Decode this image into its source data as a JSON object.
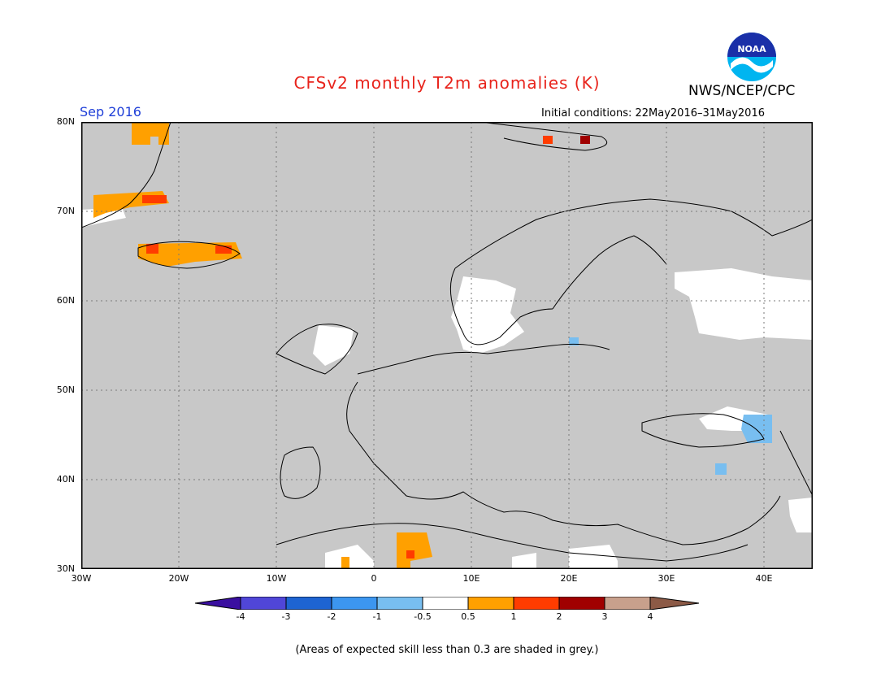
{
  "header": {
    "title": "CFSv2 monthly T2m anomalies (K)",
    "agency": "NWS/NCEP/CPC",
    "month": "Sep 2016",
    "initial_conditions": "Initial conditions: 22May2016–31May2016"
  },
  "logo": {
    "text": "NOAA"
  },
  "map": {
    "projection": "lat-lon",
    "lon_range": [
      -30,
      45
    ],
    "lat_range": [
      30,
      80
    ],
    "background_color": "#c8c8c8",
    "lat_labels": [
      "80N",
      "70N",
      "60N",
      "50N",
      "40N",
      "30N"
    ],
    "lon_labels": [
      "30W",
      "20W",
      "10W",
      "0",
      "10E",
      "20E",
      "30E",
      "40E"
    ],
    "anomaly_regions": [
      {
        "name": "greenland-north",
        "category": "0.5 to 1"
      },
      {
        "name": "greenland-east",
        "category": "1 to 2"
      },
      {
        "name": "iceland",
        "category": "0.5 to 1"
      },
      {
        "name": "svalbard",
        "category": "1 to 3"
      },
      {
        "name": "algeria",
        "category": "0.5 to 2"
      },
      {
        "name": "black-sea-east",
        "category": "-1 to -0.5"
      },
      {
        "name": "baltic",
        "category": "-1 to -0.5"
      },
      {
        "name": "northern-russia",
        "category": "-0.5 to 0.5"
      },
      {
        "name": "scandinavia-south",
        "category": "-0.5 to 0.5"
      }
    ]
  },
  "colorbar": {
    "labels": [
      "-4",
      "-3",
      "-2",
      "-1",
      "-0.5",
      "0.5",
      "1",
      "2",
      "3",
      "4"
    ],
    "colors": [
      "#3a0fa0",
      "#5046d8",
      "#1e64d2",
      "#3c96f0",
      "#78bef0",
      "#ffffff",
      "#ffa000",
      "#ff3c00",
      "#a00000",
      "#c8a08c",
      "#8c5a46"
    ]
  },
  "footnote": "(Areas of expected skill less than 0.3 are shaded in grey.)"
}
